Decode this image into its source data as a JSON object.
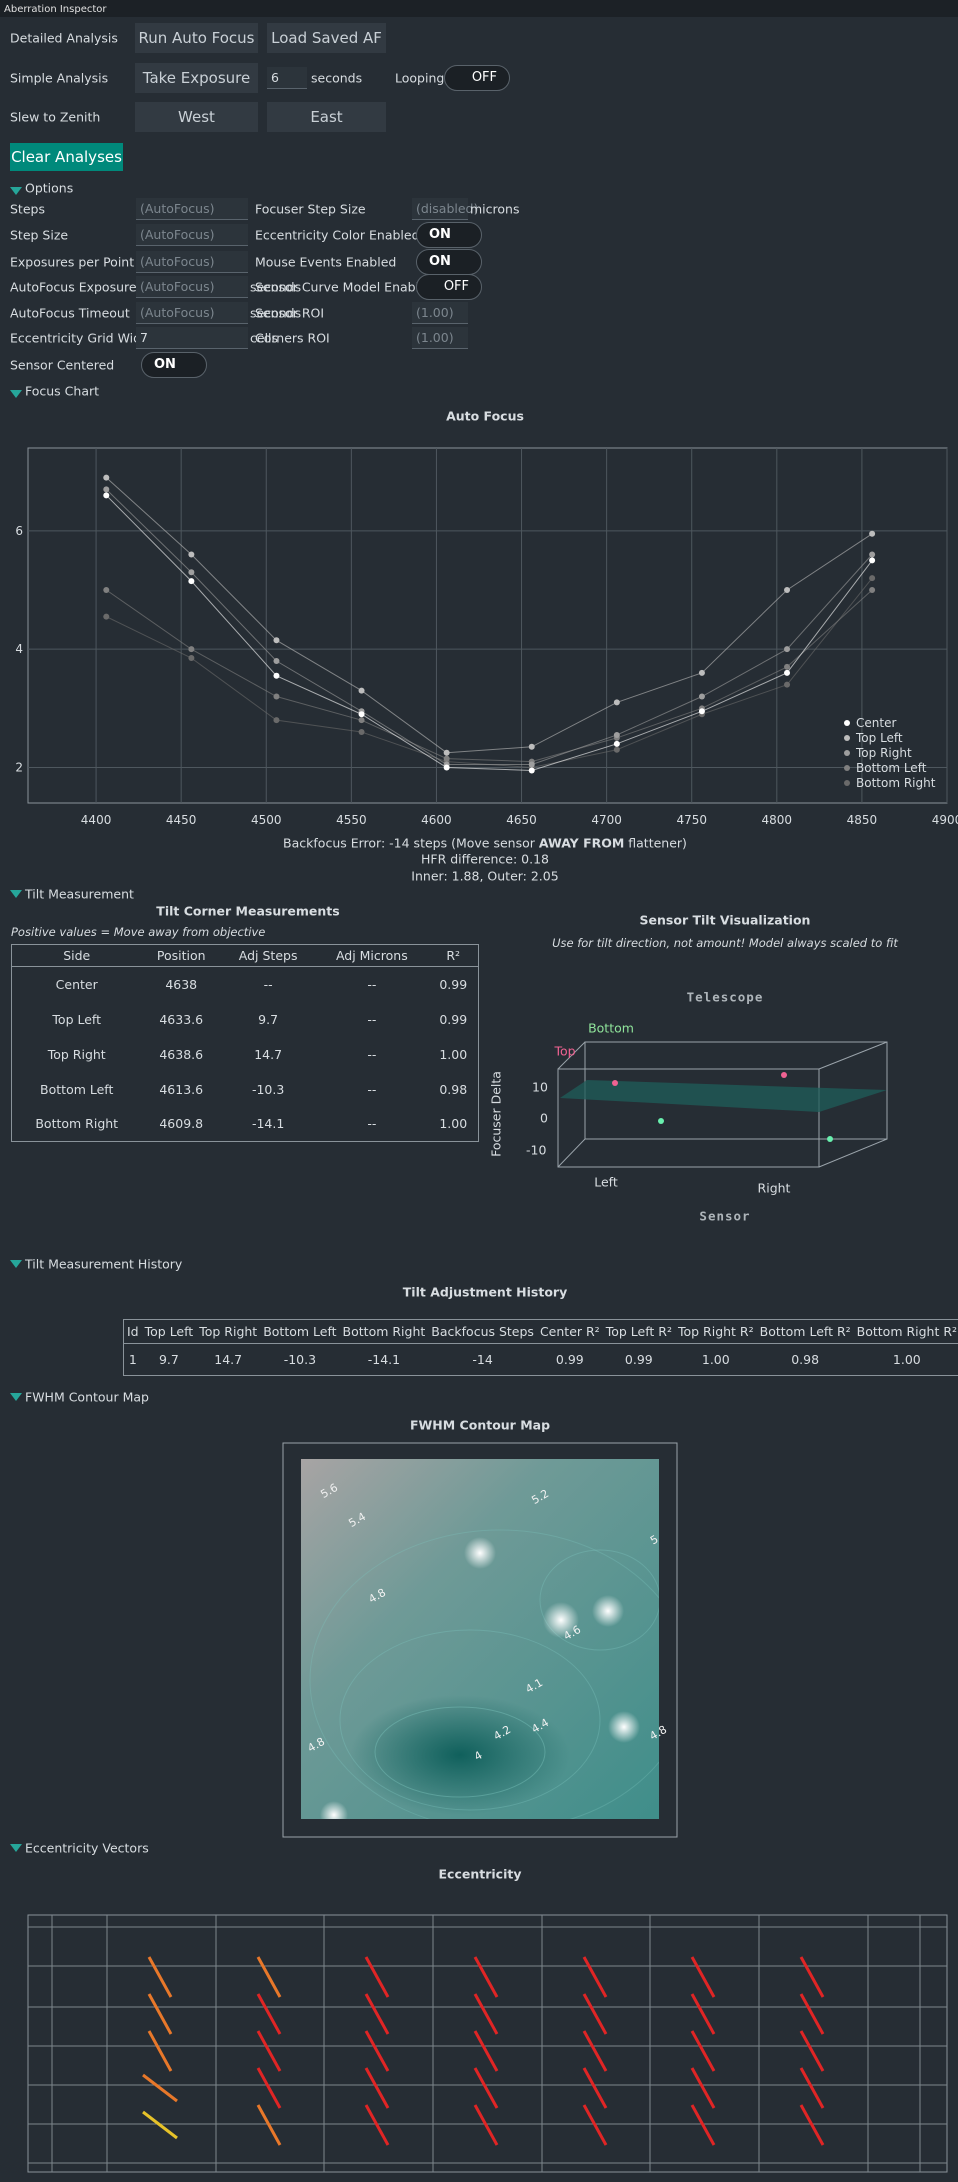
{
  "window_title": "Aberration Inspector",
  "rows": [
    {
      "label": "Detailed Analysis",
      "buttons": [
        "Run Auto Focus",
        "Load Saved AF"
      ]
    },
    {
      "label": "Simple Analysis",
      "buttons": [
        "Take Exposure"
      ],
      "exposure": 6,
      "unit": "seconds",
      "looping": "Looping",
      "toggle": "OFF"
    },
    {
      "label": "Slew to Zenith",
      "buttons": [
        "West",
        "East"
      ]
    }
  ],
  "clear_button": "Clear Analyses",
  "sections": {
    "options": "Options",
    "focus_chart": "Focus Chart",
    "tilt": "Tilt Measurement",
    "history": "Tilt Measurement History",
    "fwhm": "FWHM Contour Map",
    "eccentricity": "Eccentricity Vectors"
  },
  "options": {
    "left": [
      {
        "label": "Steps",
        "value": "(AutoFocus)"
      },
      {
        "label": "Step Size",
        "value": "(AutoFocus)"
      },
      {
        "label": "Exposures per Point",
        "value": "(AutoFocus)"
      },
      {
        "label": "AutoFocus Exposure",
        "value": "(AutoFocus)",
        "unit": "seconds"
      },
      {
        "label": "AutoFocus Timeout",
        "value": "(AutoFocus)",
        "unit": "seconds"
      },
      {
        "label": "Eccentricity Grid Width",
        "value": 7,
        "unit": "cells"
      },
      {
        "label": "Sensor Centered",
        "toggle": "ON"
      }
    ],
    "right": [
      {
        "label": "Focuser Step Size",
        "value": "(disabled)",
        "unit": "microns"
      },
      {
        "label": "Eccentricity Color Enabled",
        "toggle": "ON"
      },
      {
        "label": "Mouse Events Enabled",
        "toggle": "ON"
      },
      {
        "label": "Sensor Curve Model Enabled",
        "toggle": "OFF"
      },
      {
        "label": "Sensor ROI",
        "value": "(1.00)"
      },
      {
        "label": "Corners ROI",
        "value": "(1.00)"
      }
    ]
  },
  "chart_data": {
    "type": "scatter",
    "title": "Auto Focus",
    "x": [
      4406,
      4456,
      4506,
      4556,
      4606,
      4656,
      4706,
      4756,
      4806,
      4856
    ],
    "series": [
      {
        "name": "Center",
        "color": "#ffffff",
        "values": [
          6.6,
          5.15,
          3.55,
          2.9,
          2.0,
          1.95,
          2.4,
          2.95,
          3.6,
          5.5
        ]
      },
      {
        "name": "Top Left",
        "color": "#bdbdbd",
        "values": [
          6.9,
          5.6,
          4.15,
          3.3,
          2.25,
          2.35,
          3.1,
          3.6,
          5.0,
          5.95
        ]
      },
      {
        "name": "Top Right",
        "color": "#9e9e9e",
        "values": [
          6.7,
          5.3,
          3.8,
          2.95,
          2.05,
          2.05,
          2.55,
          3.2,
          4.0,
          5.6
        ]
      },
      {
        "name": "Bottom Left",
        "color": "#808080",
        "values": [
          5.0,
          4.0,
          3.2,
          2.8,
          2.15,
          2.1,
          2.5,
          3.0,
          3.7,
          5.0
        ]
      },
      {
        "name": "Bottom Right",
        "color": "#6a6a6a",
        "values": [
          4.55,
          3.85,
          2.8,
          2.6,
          2.1,
          2.0,
          2.3,
          2.9,
          3.4,
          5.2
        ]
      }
    ],
    "xlim": [
      4360,
      4900
    ],
    "ylim": [
      1.4,
      7.4
    ],
    "xticks": [
      4400,
      4450,
      4500,
      4550,
      4600,
      4650,
      4700,
      4750,
      4800,
      4850,
      4900
    ],
    "yticks": [
      2,
      4,
      6
    ],
    "grid": true,
    "legend": "lower right",
    "backfocus": {
      "prefix": "Backfocus Error: -14 steps (Move sensor ",
      "emphasis": "AWAY FROM",
      "suffix": " flattener)"
    },
    "annotations": [
      "HFR difference: 0.18",
      "Inner: 1.88, Outer: 2.05"
    ]
  },
  "tilt": {
    "title": "Tilt Corner Measurements",
    "note": "Positive values = Move away from objective",
    "columns": [
      "Side",
      "Position",
      "Adj Steps",
      "Adj Microns",
      "R²"
    ],
    "rows": [
      [
        "Center",
        "4638",
        "--",
        "--",
        "0.99"
      ],
      [
        "Top Left",
        "4633.6",
        "9.7",
        "--",
        "0.99"
      ],
      [
        "Top Right",
        "4638.6",
        "14.7",
        "--",
        "1.00"
      ],
      [
        "Bottom Left",
        "4613.6",
        "-10.3",
        "--",
        "0.98"
      ],
      [
        "Bottom Right",
        "4609.8",
        "-14.1",
        "--",
        "1.00"
      ]
    ]
  },
  "tilt_viz": {
    "title": "Sensor Tilt Visualization",
    "subtitle": "Use for tilt direction, not amount! Model always scaled to fit",
    "top_label": "Telescope",
    "bottom_label": "Sensor",
    "axis_label": "Focuser Delta",
    "ticks": [
      "10",
      "0",
      "-10"
    ],
    "top": "Top",
    "bottom": "Bottom",
    "left": "Left",
    "right": "Right"
  },
  "history": {
    "title": "Tilt Adjustment History",
    "columns": [
      "Id",
      "Top Left",
      "Top Right",
      "Bottom Left",
      "Bottom Right",
      "Backfocus Steps",
      "Center R²",
      "Top Left R²",
      "Top Right R²",
      "Bottom Left R²",
      "Bottom Right R²"
    ],
    "rows": [
      [
        "1",
        "9.7",
        "14.7",
        "-10.3",
        "-14.1",
        "-14",
        "0.99",
        "0.99",
        "1.00",
        "0.98",
        "1.00"
      ]
    ]
  },
  "fwhm": {
    "title": "FWHM Contour Map",
    "contour_labels": [
      "5.6",
      "5.4",
      "5.2",
      "5",
      "4.8",
      "4.6",
      "4.1",
      "4.4",
      "4.2",
      "4",
      "4.8",
      "4.8"
    ]
  },
  "eccentricity": {
    "title": "Eccentricity"
  }
}
